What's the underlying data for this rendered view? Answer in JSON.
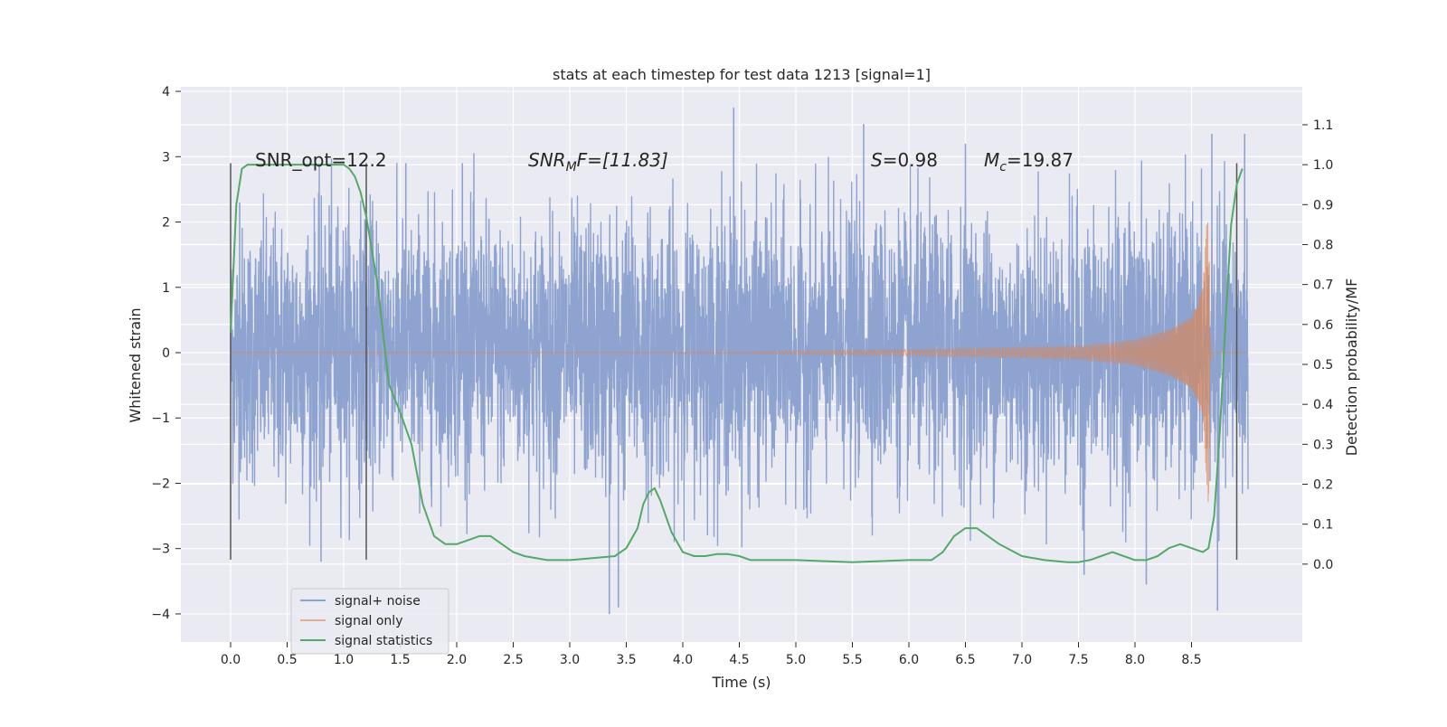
{
  "chart_data": {
    "type": "line",
    "title": "stats at each timestep for test data 1213 [signal=1]",
    "xlabel": "Time (s)",
    "ylabel": "Whitened strain",
    "ylabel_right": "Detection probability/MF",
    "xlim": [
      -0.44,
      9.48
    ],
    "ylim": [
      -4.43,
      4.07
    ],
    "ylim_right": [
      -0.195,
      1.195
    ],
    "x_ticks": [
      0.0,
      0.5,
      1.0,
      1.5,
      2.0,
      2.5,
      3.0,
      3.5,
      4.0,
      4.5,
      5.0,
      5.5,
      6.0,
      6.5,
      7.0,
      7.5,
      8.0,
      8.5
    ],
    "x_tick_labels": [
      "0.0",
      "0.5",
      "1.0",
      "1.5",
      "2.0",
      "2.5",
      "3.0",
      "3.5",
      "4.0",
      "4.5",
      "5.0",
      "5.5",
      "6.0",
      "6.5",
      "7.0",
      "7.5",
      "8.0",
      "8.5"
    ],
    "y_ticks": [
      -4,
      -3,
      -2,
      -1,
      0,
      1,
      2,
      3,
      4
    ],
    "y_tick_labels": [
      "−4",
      "−3",
      "−2",
      "−1",
      "0",
      "1",
      "2",
      "3",
      "4"
    ],
    "y_ticks_right": [
      0.0,
      0.1,
      0.2,
      0.3,
      0.4,
      0.5,
      0.6,
      0.7,
      0.8,
      0.9,
      1.0,
      1.1
    ],
    "y_tick_labels_right": [
      "0.0",
      "0.1",
      "0.2",
      "0.3",
      "0.4",
      "0.5",
      "0.6",
      "0.7",
      "0.8",
      "0.9",
      "1.0",
      "1.1"
    ],
    "grid": true,
    "legend_position": "bottom-left",
    "annotations": {
      "snr_opt": "SNR_opt=12.2",
      "snr_mf_main": "SNR",
      "snr_mf_sub": "M",
      "snr_mf_rest": "F=[11.83]",
      "s_main": "S",
      "s_rest": "=0.98",
      "mc_main": "M",
      "mc_sub": "c",
      "mc_rest": "=19.87"
    },
    "vertical_markers": [
      0.0,
      1.2,
      8.9
    ],
    "series": [
      {
        "name": "signal+ noise",
        "color": "#8ea3cf",
        "x_range": [
          0.0,
          9.0
        ],
        "envelope": [
          {
            "x": 0.0,
            "lo": -2.3,
            "hi": 2.2
          },
          {
            "x": 0.5,
            "lo": -2.4,
            "hi": 2.4
          },
          {
            "x": 1.0,
            "lo": -2.3,
            "hi": 2.6
          },
          {
            "x": 1.5,
            "lo": -2.2,
            "hi": 2.3
          },
          {
            "x": 2.0,
            "lo": -2.2,
            "hi": 2.5
          },
          {
            "x": 2.5,
            "lo": -2.3,
            "hi": 2.3
          },
          {
            "x": 3.0,
            "lo": -2.3,
            "hi": 2.4
          },
          {
            "x": 3.5,
            "lo": -2.4,
            "hi": 2.5
          },
          {
            "x": 4.0,
            "lo": -2.3,
            "hi": 2.4
          },
          {
            "x": 4.5,
            "lo": -2.4,
            "hi": 2.6
          },
          {
            "x": 5.0,
            "lo": -2.3,
            "hi": 2.3
          },
          {
            "x": 5.5,
            "lo": -2.2,
            "hi": 2.5
          },
          {
            "x": 6.0,
            "lo": -2.3,
            "hi": 2.4
          },
          {
            "x": 6.5,
            "lo": -2.3,
            "hi": 2.5
          },
          {
            "x": 7.0,
            "lo": -2.3,
            "hi": 2.3
          },
          {
            "x": 7.5,
            "lo": -2.4,
            "hi": 2.4
          },
          {
            "x": 8.0,
            "lo": -2.3,
            "hi": 2.6
          },
          {
            "x": 8.5,
            "lo": -2.4,
            "hi": 2.4
          },
          {
            "x": 9.0,
            "lo": -2.2,
            "hi": 2.3
          }
        ],
        "spikes": [
          {
            "x": 0.08,
            "y": 2.3
          },
          {
            "x": 0.8,
            "y": -3.2
          },
          {
            "x": 1.55,
            "y": 2.9
          },
          {
            "x": 2.05,
            "y": 2.9
          },
          {
            "x": 3.35,
            "y": -4.0
          },
          {
            "x": 3.43,
            "y": -3.9
          },
          {
            "x": 4.45,
            "y": 3.75
          },
          {
            "x": 5.6,
            "y": 3.5
          },
          {
            "x": 6.5,
            "y": 3.2
          },
          {
            "x": 7.55,
            "y": -3.4
          },
          {
            "x": 8.1,
            "y": -3.55
          },
          {
            "x": 8.68,
            "y": 3.35
          },
          {
            "x": 8.73,
            "y": -3.95
          },
          {
            "x": 8.97,
            "y": 3.35
          }
        ]
      },
      {
        "name": "signal only",
        "color": "#dd8452",
        "amplitude_envelope": [
          {
            "x": 0.0,
            "a": 0.0
          },
          {
            "x": 4.5,
            "a": 0.01
          },
          {
            "x": 5.0,
            "a": 0.03
          },
          {
            "x": 6.0,
            "a": 0.05
          },
          {
            "x": 7.0,
            "a": 0.08
          },
          {
            "x": 7.5,
            "a": 0.1
          },
          {
            "x": 8.0,
            "a": 0.2
          },
          {
            "x": 8.3,
            "a": 0.35
          },
          {
            "x": 8.5,
            "a": 0.55
          },
          {
            "x": 8.6,
            "a": 1.0
          },
          {
            "x": 8.65,
            "a": 2.4
          },
          {
            "x": 8.67,
            "a": 0.0
          },
          {
            "x": 9.0,
            "a": 0.0
          }
        ]
      },
      {
        "name": "signal statistics",
        "color": "#55a868",
        "axis": "right",
        "x": [
          0.0,
          0.05,
          0.1,
          0.15,
          0.2,
          0.4,
          0.6,
          0.8,
          1.0,
          1.05,
          1.1,
          1.15,
          1.2,
          1.3,
          1.4,
          1.5,
          1.6,
          1.7,
          1.8,
          1.9,
          2.0,
          2.1,
          2.2,
          2.3,
          2.4,
          2.5,
          2.6,
          2.8,
          3.0,
          3.2,
          3.4,
          3.5,
          3.6,
          3.65,
          3.7,
          3.75,
          3.8,
          3.9,
          4.0,
          4.1,
          4.2,
          4.3,
          4.4,
          4.5,
          4.6,
          4.7,
          5.0,
          5.5,
          6.0,
          6.2,
          6.3,
          6.4,
          6.5,
          6.6,
          6.7,
          6.8,
          7.0,
          7.2,
          7.4,
          7.5,
          7.6,
          7.7,
          7.8,
          7.9,
          8.0,
          8.1,
          8.2,
          8.3,
          8.4,
          8.5,
          8.6,
          8.65,
          8.7,
          8.75,
          8.8,
          8.85,
          8.9,
          8.95
        ],
        "values": [
          0.58,
          0.9,
          0.99,
          1.0,
          1.0,
          1.0,
          1.0,
          1.0,
          1.0,
          0.99,
          0.97,
          0.93,
          0.87,
          0.7,
          0.45,
          0.38,
          0.3,
          0.15,
          0.07,
          0.05,
          0.05,
          0.06,
          0.07,
          0.07,
          0.05,
          0.03,
          0.02,
          0.01,
          0.01,
          0.015,
          0.02,
          0.04,
          0.09,
          0.15,
          0.18,
          0.19,
          0.16,
          0.08,
          0.03,
          0.02,
          0.02,
          0.025,
          0.025,
          0.02,
          0.01,
          0.01,
          0.01,
          0.005,
          0.01,
          0.01,
          0.03,
          0.07,
          0.09,
          0.09,
          0.07,
          0.05,
          0.02,
          0.01,
          0.005,
          0.005,
          0.01,
          0.02,
          0.03,
          0.02,
          0.01,
          0.01,
          0.02,
          0.04,
          0.05,
          0.04,
          0.03,
          0.04,
          0.12,
          0.33,
          0.6,
          0.85,
          0.95,
          0.99
        ]
      }
    ]
  }
}
